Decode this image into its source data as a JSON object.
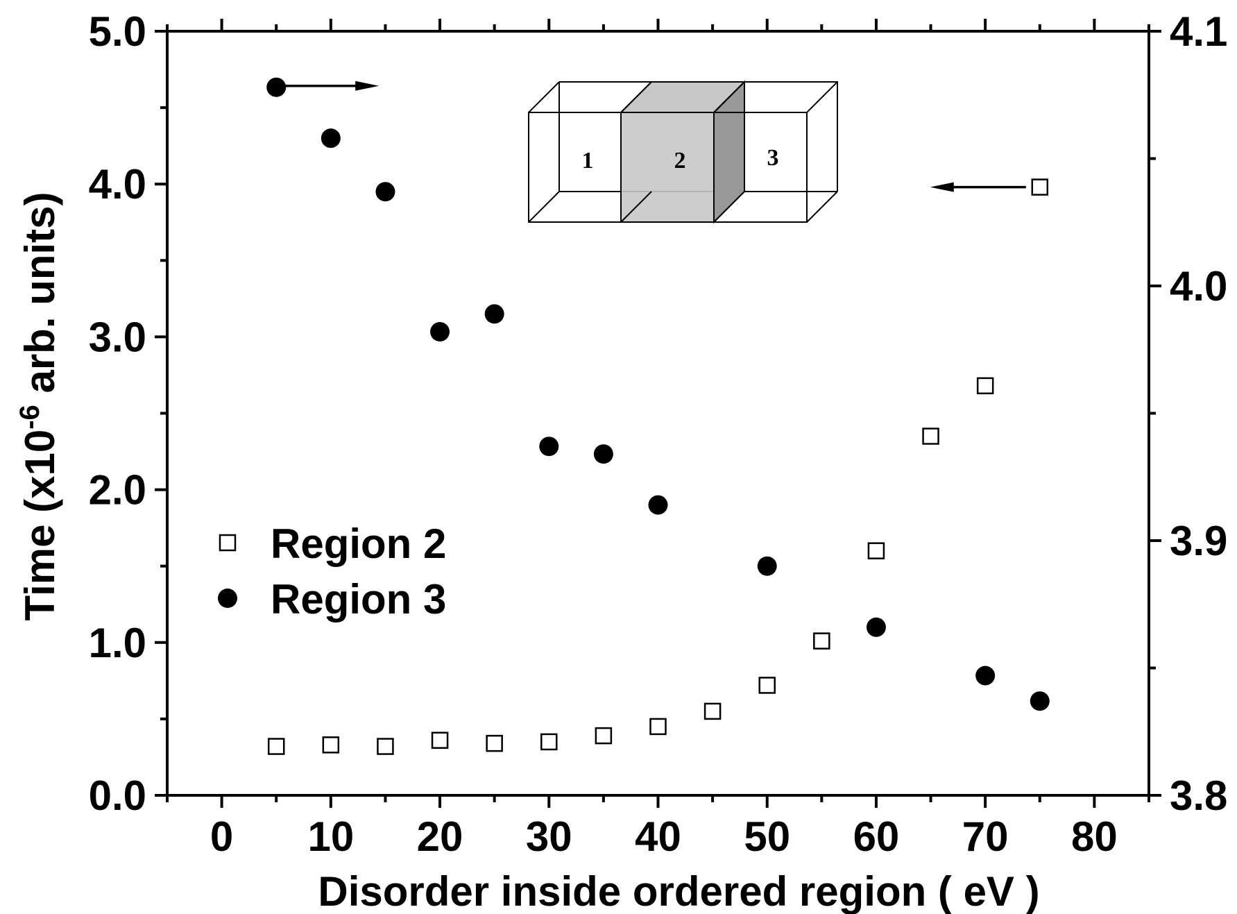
{
  "chart_data": {
    "type": "scatter",
    "title": "",
    "xlabel": "Disorder inside ordered region ( eV )",
    "ylabel_left": {
      "pre": "Time (x10",
      "sup": "-6",
      "post": " arb. units)"
    },
    "ylabel_right": "",
    "xlim": [
      -5,
      85
    ],
    "ylim_left": [
      0.0,
      5.0
    ],
    "ylim_right": [
      3.8,
      4.1
    ],
    "xticks": [
      0,
      10,
      20,
      30,
      40,
      50,
      60,
      70,
      80
    ],
    "xtick_labels": [
      "0",
      "10",
      "20",
      "30",
      "40",
      "50",
      "60",
      "70",
      "80"
    ],
    "yticks_left": [
      0.0,
      1.0,
      2.0,
      3.0,
      4.0,
      5.0
    ],
    "ytick_labels_left": [
      "0.0",
      "1.0",
      "2.0",
      "3.0",
      "4.0",
      "5.0"
    ],
    "yticks_right": [
      3.8,
      3.9,
      4.0,
      4.1
    ],
    "ytick_labels_right": [
      "3.8",
      "3.9",
      "4.0",
      "4.1"
    ],
    "grid": false,
    "legend_position": "middle-left",
    "series": [
      {
        "name": "Region 2",
        "marker": "open-square",
        "axis": "left",
        "x": [
          5,
          10,
          15,
          20,
          25,
          30,
          35,
          40,
          45,
          50,
          55,
          60,
          65,
          70,
          75
        ],
        "y": [
          0.32,
          0.33,
          0.32,
          0.36,
          0.34,
          0.35,
          0.39,
          0.45,
          0.55,
          0.72,
          1.01,
          1.6,
          2.35,
          2.68,
          3.98
        ]
      },
      {
        "name": "Region 3",
        "marker": "filled-circle",
        "axis": "right",
        "x": [
          5,
          10,
          15,
          20,
          25,
          30,
          35,
          40,
          50,
          60,
          70,
          75
        ],
        "y": [
          4.078,
          4.058,
          4.037,
          3.982,
          3.989,
          3.937,
          3.934,
          3.914,
          3.89,
          3.866,
          3.847,
          3.837
        ]
      }
    ],
    "inset": {
      "labels": [
        "1",
        "2",
        "3"
      ],
      "fill_colors": [
        "#ffffff",
        "#c8c8c8",
        "#ffffff"
      ],
      "shade_right_face": "#999999"
    },
    "arrows": [
      {
        "series": "Region 3",
        "direction": "right"
      },
      {
        "series": "Region 2",
        "direction": "left"
      }
    ],
    "colors": {
      "ink": "#000000",
      "background": "#ffffff"
    }
  }
}
